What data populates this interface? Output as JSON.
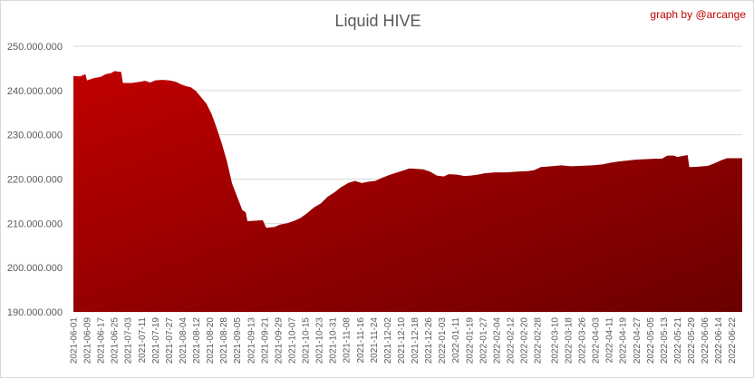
{
  "chart_data": {
    "type": "area",
    "title": "Liquid HIVE",
    "credit": "graph by @arcange",
    "xlabel": "",
    "ylabel": "",
    "ylim": [
      190000000,
      250000000
    ],
    "ytick_values": [
      190000000,
      200000000,
      210000000,
      220000000,
      230000000,
      240000000,
      250000000
    ],
    "ytick_labels": [
      "190.000.000",
      "200.000.000",
      "210.000.000",
      "220.000.000",
      "230.000.000",
      "240.000.000",
      "250.000.000"
    ],
    "grid": "horizontal",
    "legend": "none",
    "colors": {
      "area_top": "#c00000",
      "area_bottom": "#6b0000",
      "grid": "#d9d9d9",
      "credit": "#c00000",
      "title": "#595959",
      "tick": "#595959"
    },
    "x_start": "2021-06-01",
    "x_end": "2022-06-28",
    "x_tick_labels": [
      "2021-06-01",
      "2021-06-09",
      "2021-06-17",
      "2021-06-25",
      "2021-07-03",
      "2021-07-11",
      "2021-07-19",
      "2021-07-27",
      "2021-08-04",
      "2021-08-12",
      "2021-08-20",
      "2021-08-28",
      "2021-09-05",
      "2021-09-13",
      "2021-09-21",
      "2021-09-29",
      "2021-10-07",
      "2021-10-15",
      "2021-10-23",
      "2021-10-31",
      "2021-11-08",
      "2021-11-16",
      "2021-11-24",
      "2021-12-02",
      "2021-12-10",
      "2021-12-18",
      "2021-12-26",
      "2022-01-03",
      "2022-01-11",
      "2022-01-19",
      "2022-01-27",
      "2022-02-04",
      "2022-02-12",
      "2022-02-20",
      "2022-02-28",
      "2022-03-10",
      "2022-03-18",
      "2022-03-26",
      "2022-04-03",
      "2022-04-11",
      "2022-04-19",
      "2022-04-27",
      "2022-05-05",
      "2022-05-13",
      "2022-05-21",
      "2022-05-29",
      "2022-06-06",
      "2022-06-14",
      "2022-06-22"
    ],
    "series": [
      {
        "values": [
          {
            "x": "2021-06-01",
            "y": 243300000
          },
          {
            "x": "2021-06-05",
            "y": 243200000
          },
          {
            "x": "2021-06-08",
            "y": 243700000
          },
          {
            "x": "2021-06-09",
            "y": 242300000
          },
          {
            "x": "2021-06-13",
            "y": 242800000
          },
          {
            "x": "2021-06-17",
            "y": 243100000
          },
          {
            "x": "2021-06-20",
            "y": 243700000
          },
          {
            "x": "2021-06-23",
            "y": 243900000
          },
          {
            "x": "2021-06-25",
            "y": 244400000
          },
          {
            "x": "2021-06-29",
            "y": 244200000
          },
          {
            "x": "2021-06-30",
            "y": 241700000
          },
          {
            "x": "2021-07-05",
            "y": 241700000
          },
          {
            "x": "2021-07-09",
            "y": 241900000
          },
          {
            "x": "2021-07-13",
            "y": 242200000
          },
          {
            "x": "2021-07-16",
            "y": 241800000
          },
          {
            "x": "2021-07-19",
            "y": 242300000
          },
          {
            "x": "2021-07-23",
            "y": 242400000
          },
          {
            "x": "2021-07-27",
            "y": 242300000
          },
          {
            "x": "2021-07-31",
            "y": 242000000
          },
          {
            "x": "2021-08-03",
            "y": 241400000
          },
          {
            "x": "2021-08-06",
            "y": 241000000
          },
          {
            "x": "2021-08-09",
            "y": 240700000
          },
          {
            "x": "2021-08-12",
            "y": 239800000
          },
          {
            "x": "2021-08-15",
            "y": 238400000
          },
          {
            "x": "2021-08-18",
            "y": 237000000
          },
          {
            "x": "2021-08-21",
            "y": 234700000
          },
          {
            "x": "2021-08-24",
            "y": 231500000
          },
          {
            "x": "2021-08-27",
            "y": 228000000
          },
          {
            "x": "2021-08-30",
            "y": 224000000
          },
          {
            "x": "2021-09-02",
            "y": 219000000
          },
          {
            "x": "2021-09-05",
            "y": 216000000
          },
          {
            "x": "2021-09-08",
            "y": 213000000
          },
          {
            "x": "2021-09-10",
            "y": 212500000
          },
          {
            "x": "2021-09-11",
            "y": 210500000
          },
          {
            "x": "2021-09-16",
            "y": 210600000
          },
          {
            "x": "2021-09-20",
            "y": 210700000
          },
          {
            "x": "2021-09-22",
            "y": 209000000
          },
          {
            "x": "2021-09-27",
            "y": 209200000
          },
          {
            "x": "2021-09-30",
            "y": 209700000
          },
          {
            "x": "2021-10-04",
            "y": 210000000
          },
          {
            "x": "2021-10-08",
            "y": 210500000
          },
          {
            "x": "2021-10-12",
            "y": 211200000
          },
          {
            "x": "2021-10-16",
            "y": 212300000
          },
          {
            "x": "2021-10-20",
            "y": 213600000
          },
          {
            "x": "2021-10-24",
            "y": 214500000
          },
          {
            "x": "2021-10-28",
            "y": 216000000
          },
          {
            "x": "2021-11-01",
            "y": 217000000
          },
          {
            "x": "2021-11-05",
            "y": 218200000
          },
          {
            "x": "2021-11-09",
            "y": 219100000
          },
          {
            "x": "2021-11-13",
            "y": 219600000
          },
          {
            "x": "2021-11-17",
            "y": 219100000
          },
          {
            "x": "2021-11-21",
            "y": 219400000
          },
          {
            "x": "2021-11-25",
            "y": 219600000
          },
          {
            "x": "2021-11-29",
            "y": 220300000
          },
          {
            "x": "2021-12-03",
            "y": 220900000
          },
          {
            "x": "2021-12-07",
            "y": 221400000
          },
          {
            "x": "2021-12-11",
            "y": 221900000
          },
          {
            "x": "2021-12-15",
            "y": 222400000
          },
          {
            "x": "2021-12-19",
            "y": 222300000
          },
          {
            "x": "2021-12-23",
            "y": 222200000
          },
          {
            "x": "2021-12-27",
            "y": 221700000
          },
          {
            "x": "2021-12-31",
            "y": 220800000
          },
          {
            "x": "2022-01-04",
            "y": 220600000
          },
          {
            "x": "2022-01-07",
            "y": 221100000
          },
          {
            "x": "2022-01-12",
            "y": 221000000
          },
          {
            "x": "2022-01-16",
            "y": 220700000
          },
          {
            "x": "2022-01-20",
            "y": 220800000
          },
          {
            "x": "2022-01-24",
            "y": 221000000
          },
          {
            "x": "2022-01-28",
            "y": 221300000
          },
          {
            "x": "2022-02-03",
            "y": 221500000
          },
          {
            "x": "2022-02-10",
            "y": 221500000
          },
          {
            "x": "2022-02-16",
            "y": 221700000
          },
          {
            "x": "2022-02-22",
            "y": 221800000
          },
          {
            "x": "2022-02-26",
            "y": 222000000
          },
          {
            "x": "2022-03-02",
            "y": 222700000
          },
          {
            "x": "2022-03-08",
            "y": 222900000
          },
          {
            "x": "2022-03-14",
            "y": 223100000
          },
          {
            "x": "2022-03-20",
            "y": 222900000
          },
          {
            "x": "2022-03-26",
            "y": 223000000
          },
          {
            "x": "2022-04-01",
            "y": 223100000
          },
          {
            "x": "2022-04-07",
            "y": 223300000
          },
          {
            "x": "2022-04-12",
            "y": 223700000
          },
          {
            "x": "2022-04-17",
            "y": 224000000
          },
          {
            "x": "2022-04-22",
            "y": 224200000
          },
          {
            "x": "2022-04-27",
            "y": 224400000
          },
          {
            "x": "2022-05-03",
            "y": 224500000
          },
          {
            "x": "2022-05-08",
            "y": 224600000
          },
          {
            "x": "2022-05-12",
            "y": 224600000
          },
          {
            "x": "2022-05-15",
            "y": 225300000
          },
          {
            "x": "2022-05-19",
            "y": 225300000
          },
          {
            "x": "2022-05-21",
            "y": 225000000
          },
          {
            "x": "2022-05-25",
            "y": 225300000
          },
          {
            "x": "2022-05-27",
            "y": 225400000
          },
          {
            "x": "2022-05-28",
            "y": 222700000
          },
          {
            "x": "2022-06-02",
            "y": 222800000
          },
          {
            "x": "2022-06-08",
            "y": 223000000
          },
          {
            "x": "2022-06-12",
            "y": 223600000
          },
          {
            "x": "2022-06-16",
            "y": 224300000
          },
          {
            "x": "2022-06-19",
            "y": 224700000
          },
          {
            "x": "2022-06-28",
            "y": 224700000
          }
        ]
      }
    ]
  }
}
